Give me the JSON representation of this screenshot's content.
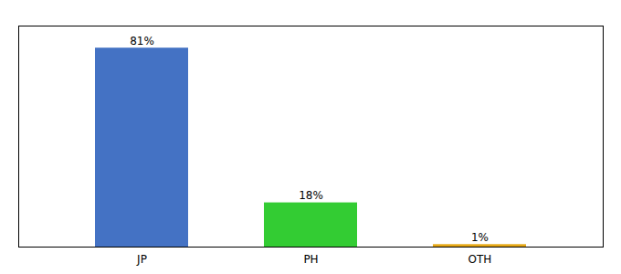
{
  "chart_data": {
    "type": "bar",
    "categories": [
      "JP",
      "PH",
      "OTH"
    ],
    "values": [
      81,
      18,
      1
    ],
    "value_labels": [
      "81%",
      "18%",
      "1%"
    ],
    "colors": [
      "#4472c4",
      "#33cc33",
      "#e6a817"
    ],
    "ylim": [
      0,
      90
    ],
    "yticks": [],
    "data_labels": true,
    "tick_labels": "x"
  }
}
